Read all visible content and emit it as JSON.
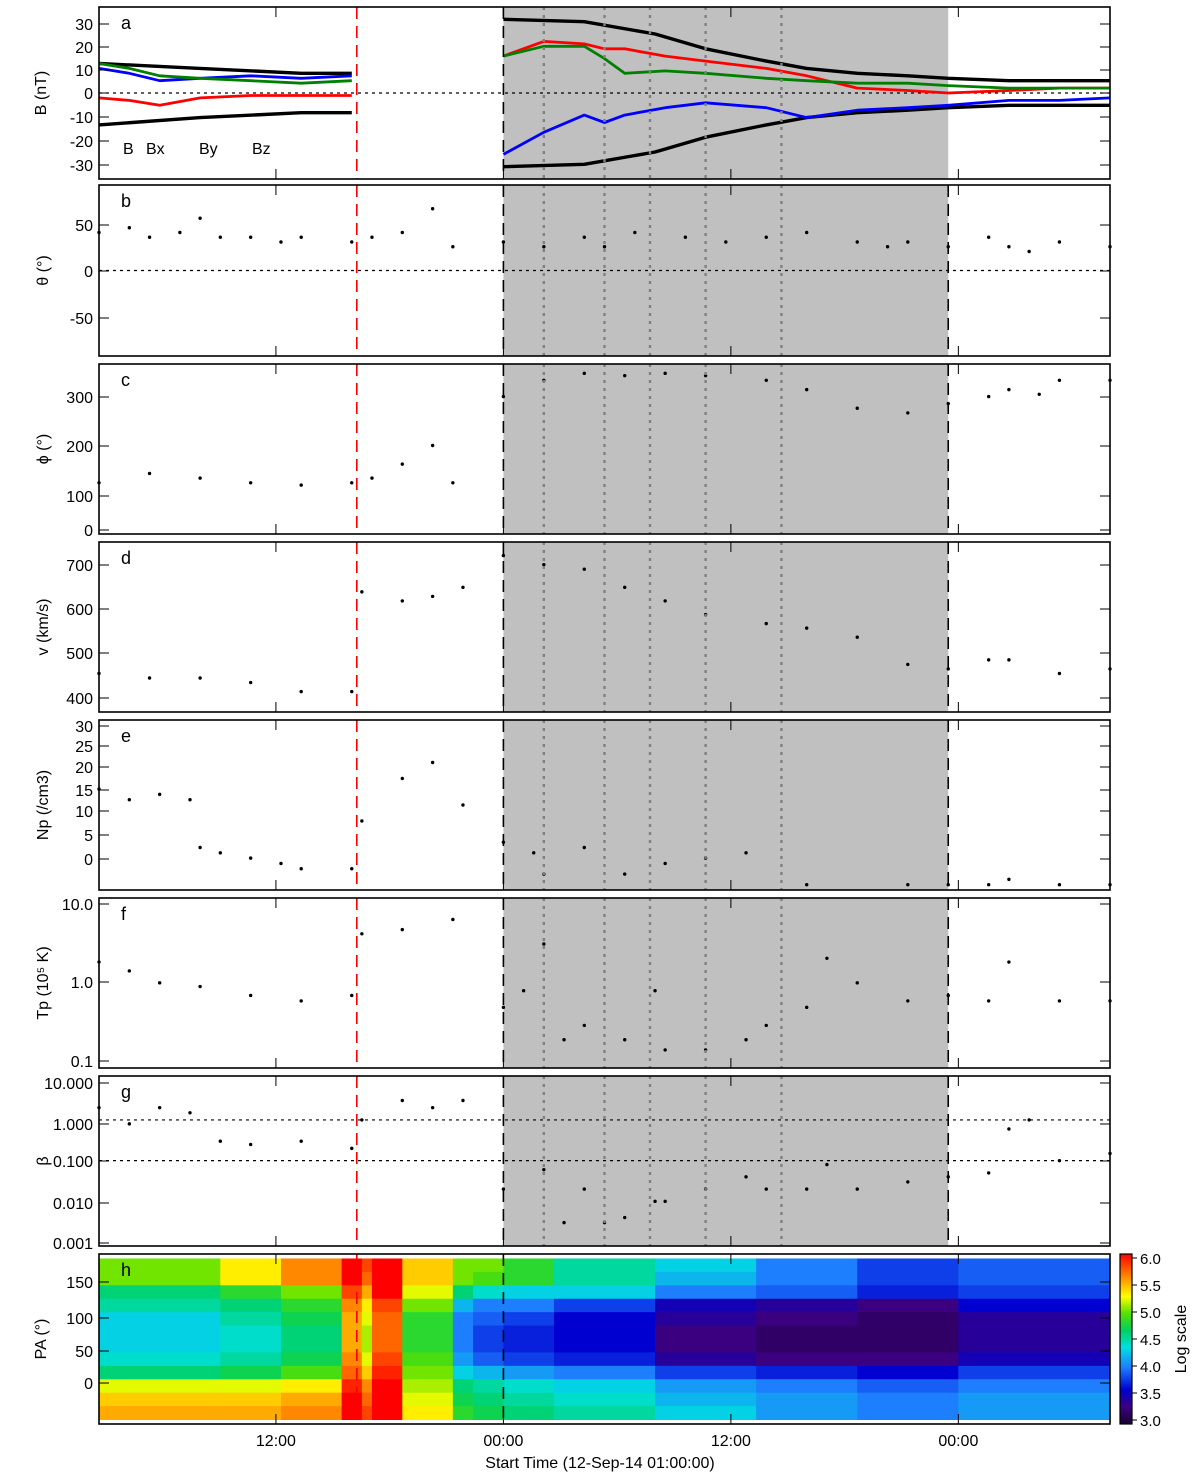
{
  "chart_data": [
    {
      "panel": "a",
      "type": "line",
      "ylabel": "B (nT)",
      "ylim": [
        -35,
        35
      ],
      "yticks": [
        "30",
        "20",
        "10",
        "0",
        "-10",
        "-20",
        "-30"
      ],
      "reference_lines": [
        0
      ],
      "legend": "bottom-left",
      "series": [
        {
          "name": "B",
          "color": "#000000",
          "x": [
            0,
            10,
            20,
            25,
            26,
            30,
            35,
            40,
            48,
            55,
            60,
            66,
            70,
            75,
            80,
            84,
            90,
            95,
            100
          ],
          "y": [
            12,
            10,
            8,
            8,
            null,
            null,
            null,
            30,
            29,
            24,
            18,
            13,
            10,
            8,
            7,
            6,
            5,
            5,
            5
          ]
        },
        {
          "name": "B",
          "color": "#000000",
          "x": [
            0,
            10,
            20,
            25,
            26,
            30,
            35,
            40,
            48,
            55,
            60,
            66,
            70,
            75,
            80,
            84,
            90,
            95,
            100
          ],
          "y": [
            -13,
            -10,
            -8,
            -8,
            null,
            null,
            null,
            -30,
            -29,
            -24,
            -18,
            -13,
            -10,
            -8,
            -7,
            -6,
            -5,
            -5,
            -5
          ]
        },
        {
          "name": "Bx",
          "color": "#ff0000",
          "x": [
            0,
            3,
            6,
            10,
            15,
            20,
            25,
            26,
            30,
            35,
            40,
            44,
            48,
            50,
            52,
            56,
            60,
            66,
            70,
            75,
            80,
            84,
            90,
            95,
            100
          ],
          "y": [
            -2,
            -3,
            -5,
            -2,
            -1,
            -1,
            -1,
            null,
            null,
            null,
            15,
            21,
            20,
            18,
            18,
            15,
            13,
            10,
            7,
            2,
            1,
            0,
            1,
            2,
            2
          ]
        },
        {
          "name": "By",
          "color": "#0000ff",
          "x": [
            0,
            3,
            6,
            10,
            15,
            20,
            25,
            26,
            30,
            35,
            40,
            44,
            48,
            50,
            52,
            56,
            60,
            66,
            70,
            75,
            80,
            84,
            90,
            95,
            100
          ],
          "y": [
            10,
            8,
            5,
            6,
            7,
            6,
            7,
            null,
            null,
            null,
            -25,
            -16,
            -9,
            -12,
            -9,
            -6,
            -4,
            -6,
            -10,
            -7,
            -6,
            -5,
            -3,
            -3,
            -2
          ]
        },
        {
          "name": "Bz",
          "color": "#008000",
          "x": [
            0,
            3,
            6,
            10,
            15,
            20,
            25,
            26,
            30,
            35,
            40,
            44,
            48,
            50,
            52,
            56,
            60,
            66,
            70,
            75,
            80,
            84,
            90,
            95,
            100
          ],
          "y": [
            12,
            10,
            7,
            6,
            5,
            4,
            5,
            null,
            null,
            null,
            15,
            19,
            19,
            14,
            8,
            9,
            8,
            6,
            5,
            4,
            4,
            3,
            2,
            2,
            2
          ]
        }
      ]
    },
    {
      "panel": "b",
      "type": "scatter",
      "ylabel": "θ (°)",
      "ylim": [
        -90,
        90
      ],
      "yticks": [
        "50",
        "0",
        "-50"
      ],
      "reference_lines": [
        0
      ],
      "series": [
        {
          "name": "",
          "x": [
            0,
            3,
            5,
            8,
            10,
            12,
            15,
            18,
            20,
            25,
            27,
            30,
            33,
            35,
            40,
            44,
            48,
            50,
            53,
            58,
            62,
            66,
            70,
            75,
            78,
            80,
            84,
            88,
            90,
            92,
            95,
            100
          ],
          "y": [
            40,
            45,
            35,
            40,
            55,
            35,
            35,
            30,
            35,
            30,
            35,
            40,
            65,
            25,
            30,
            25,
            35,
            25,
            40,
            35,
            30,
            35,
            40,
            30,
            25,
            30,
            25,
            35,
            25,
            20,
            30,
            25
          ]
        }
      ]
    },
    {
      "panel": "c",
      "type": "scatter",
      "ylabel": "ϕ (°)",
      "ylim": [
        -10,
        355
      ],
      "yticks": [
        "300",
        "200",
        "100",
        "0"
      ],
      "series": [
        {
          "name": "",
          "x": [
            0,
            5,
            10,
            15,
            20,
            25,
            27,
            30,
            33,
            35,
            40,
            44,
            48,
            52,
            56,
            60,
            66,
            70,
            75,
            80,
            84,
            88,
            90,
            93,
            95,
            100
          ],
          "y": [
            100,
            120,
            110,
            100,
            95,
            100,
            110,
            140,
            180,
            100,
            285,
            320,
            335,
            330,
            335,
            330,
            320,
            300,
            260,
            250,
            270,
            285,
            300,
            290,
            320,
            320
          ]
        }
      ]
    },
    {
      "panel": "d",
      "type": "scatter",
      "ylabel": "v (km/s)",
      "ylim": [
        375,
        750
      ],
      "yticks": [
        "700",
        "600",
        "500",
        "400"
      ],
      "series": [
        {
          "name": "",
          "x": [
            0,
            5,
            10,
            15,
            20,
            25,
            26,
            30,
            33,
            36,
            40,
            44,
            48,
            52,
            56,
            60,
            66,
            70,
            75,
            80,
            84,
            88,
            90,
            95,
            100
          ],
          "y": [
            460,
            450,
            450,
            440,
            420,
            420,
            640,
            620,
            630,
            650,
            720,
            700,
            690,
            650,
            620,
            590,
            570,
            560,
            540,
            480,
            470,
            490,
            490,
            460,
            470
          ]
        }
      ]
    },
    {
      "panel": "e",
      "type": "scatter",
      "ylabel": "Np (/cm3)",
      "ylim": [
        -1,
        31
      ],
      "yticks": [
        "30",
        "25",
        "20",
        "15",
        "10",
        "5",
        "0"
      ],
      "series": [
        {
          "name": "",
          "x": [
            0,
            3,
            6,
            9,
            10,
            12,
            15,
            18,
            20,
            25,
            26,
            30,
            33,
            36,
            40,
            43,
            44,
            48,
            52,
            56,
            60,
            64,
            66,
            70,
            80,
            84,
            88,
            90,
            95,
            100
          ],
          "y": [
            18,
            16,
            17,
            16,
            7,
            6,
            5,
            4,
            3,
            3,
            12,
            20,
            23,
            15,
            8,
            6,
            2,
            7,
            2,
            4,
            5,
            6,
            null,
            0,
            0,
            0,
            0,
            1,
            0,
            0
          ]
        }
      ]
    },
    {
      "panel": "f",
      "type": "scatter",
      "ylabel": "Tp (10⁵ K)",
      "yscale": "log",
      "ylim": [
        0.09,
        11
      ],
      "yticks": [
        "10.0",
        "1.0",
        "0.1"
      ],
      "series": [
        {
          "name": "",
          "x": [
            0,
            3,
            6,
            10,
            15,
            20,
            25,
            26,
            30,
            35,
            40,
            42,
            44,
            46,
            48,
            52,
            55,
            56,
            60,
            64,
            66,
            70,
            72,
            75,
            80,
            84,
            88,
            90,
            95,
            100
          ],
          "y": [
            1.8,
            1.4,
            1,
            0.9,
            0.7,
            0.6,
            0.7,
            4,
            4.5,
            6,
            0.5,
            0.8,
            3,
            0.2,
            0.3,
            0.2,
            0.8,
            0.15,
            0.15,
            0.2,
            0.3,
            0.5,
            2,
            1,
            0.6,
            0.7,
            0.6,
            1.8,
            0.6,
            0.6
          ]
        }
      ]
    },
    {
      "panel": "g",
      "type": "scatter",
      "ylabel": "β",
      "yscale": "log",
      "ylim": [
        0.0008,
        12
      ],
      "yticks": [
        "10.000",
        "1.000",
        "0.100",
        "0.010",
        "0.001"
      ],
      "reference_lines": [
        1,
        0.1
      ],
      "series": [
        {
          "name": "",
          "x": [
            0,
            3,
            6,
            9,
            12,
            15,
            20,
            25,
            26,
            30,
            33,
            36,
            40,
            44,
            46,
            48,
            50,
            52,
            55,
            56,
            60,
            64,
            66,
            70,
            72,
            75,
            80,
            84,
            88,
            90,
            92,
            95,
            100
          ],
          "y": [
            2,
            0.8,
            2,
            1.5,
            0.3,
            0.25,
            0.3,
            0.2,
            1,
            3,
            2,
            3,
            0.02,
            0.06,
            0.003,
            0.02,
            0.003,
            0.004,
            0.01,
            0.01,
            0.02,
            0.04,
            0.02,
            0.02,
            0.08,
            0.02,
            0.03,
            0.04,
            0.05,
            0.6,
            1,
            0.1,
            0.15
          ]
        }
      ]
    },
    {
      "panel": "h",
      "type": "heatmap",
      "ylabel": "PA (°)",
      "ylim": [
        -5,
        185
      ],
      "yticks": [
        "150",
        "100",
        "50",
        "0"
      ],
      "colorbar_label": "Log scale",
      "colorbar_ticks": [
        "6.0",
        "5.5",
        "5.0",
        "4.5",
        "4.0",
        "3.5",
        "3.0"
      ],
      "colorbar_range": [
        3.0,
        6.0
      ],
      "x_segments": [
        0,
        12,
        18,
        24,
        26,
        27,
        30,
        35,
        37,
        40,
        45,
        55,
        65,
        75,
        85,
        100
      ],
      "pa_bins": [
        172.5,
        157.5,
        142.5,
        127.5,
        112.5,
        97.5,
        82.5,
        67.5,
        52.5,
        37.5,
        22.5,
        7.5
      ],
      "z": [
        [
          5.0,
          5.3,
          5.6,
          6.0,
          5.8,
          6.0,
          5.4,
          5.0,
          5.0,
          4.8,
          4.5,
          4.3,
          4.0,
          3.8,
          3.9
        ],
        [
          5.0,
          5.3,
          5.6,
          6.0,
          5.7,
          6.0,
          5.4,
          5.0,
          4.9,
          4.8,
          4.5,
          4.2,
          4.0,
          3.8,
          3.9
        ],
        [
          4.6,
          4.8,
          5.0,
          5.8,
          5.5,
          6.0,
          5.2,
          4.6,
          4.4,
          4.3,
          4.3,
          4.0,
          3.9,
          3.7,
          3.8
        ],
        [
          4.5,
          4.6,
          4.8,
          5.6,
          5.3,
          5.8,
          5.0,
          4.2,
          4.0,
          4.0,
          3.8,
          3.5,
          3.4,
          3.3,
          3.6
        ],
        [
          4.3,
          4.5,
          4.7,
          5.5,
          5.2,
          5.7,
          4.8,
          4.0,
          3.9,
          3.8,
          3.6,
          3.4,
          3.3,
          3.2,
          3.4
        ],
        [
          4.3,
          4.4,
          4.6,
          5.5,
          5.1,
          5.7,
          4.8,
          4.0,
          3.8,
          3.7,
          3.6,
          3.3,
          3.2,
          3.2,
          3.4
        ],
        [
          4.3,
          4.4,
          4.6,
          5.5,
          5.1,
          5.7,
          4.8,
          4.0,
          3.8,
          3.7,
          3.6,
          3.3,
          3.2,
          3.2,
          3.4
        ],
        [
          4.4,
          4.5,
          4.7,
          5.6,
          5.2,
          5.8,
          4.9,
          4.1,
          3.9,
          3.8,
          3.7,
          3.4,
          3.3,
          3.3,
          3.5
        ],
        [
          4.6,
          4.7,
          4.9,
          5.7,
          5.4,
          5.9,
          5.0,
          4.3,
          4.2,
          4.1,
          4.0,
          3.8,
          3.7,
          3.6,
          3.8
        ],
        [
          5.2,
          5.2,
          5.3,
          5.9,
          5.6,
          6.0,
          5.1,
          4.6,
          4.5,
          4.4,
          4.3,
          4.1,
          4.0,
          3.9,
          4.0
        ],
        [
          5.4,
          5.4,
          5.5,
          6.0,
          5.7,
          6.0,
          5.2,
          4.7,
          4.6,
          4.5,
          4.4,
          4.2,
          4.1,
          4.0,
          4.1
        ],
        [
          5.5,
          5.5,
          5.6,
          6.0,
          5.8,
          6.0,
          5.3,
          4.8,
          4.7,
          4.6,
          4.5,
          4.3,
          4.1,
          4.0,
          4.1
        ]
      ]
    }
  ],
  "x_axis": {
    "xlim": [
      0,
      100
    ],
    "tick_labels": [
      "12:00",
      "00:00",
      "12:00",
      "00:00",
      "12:00"
    ],
    "tick_positions": [
      17.5,
      40,
      62.5,
      85,
      107.5
    ],
    "label": "Start Time (12-Sep-14 01:00:00)",
    "shaded_interval": [
      40,
      84
    ],
    "shock_line": 25.5,
    "dotted_dividers": [
      44,
      50,
      54.5,
      60,
      67.5
    ]
  },
  "legend": {
    "B": "B",
    "Bx": "Bx",
    "By": "By",
    "Bz": "Bz"
  },
  "colors": {
    "shade": "#c0c0c0",
    "shock": "#ff0000",
    "divider": "#808080"
  }
}
